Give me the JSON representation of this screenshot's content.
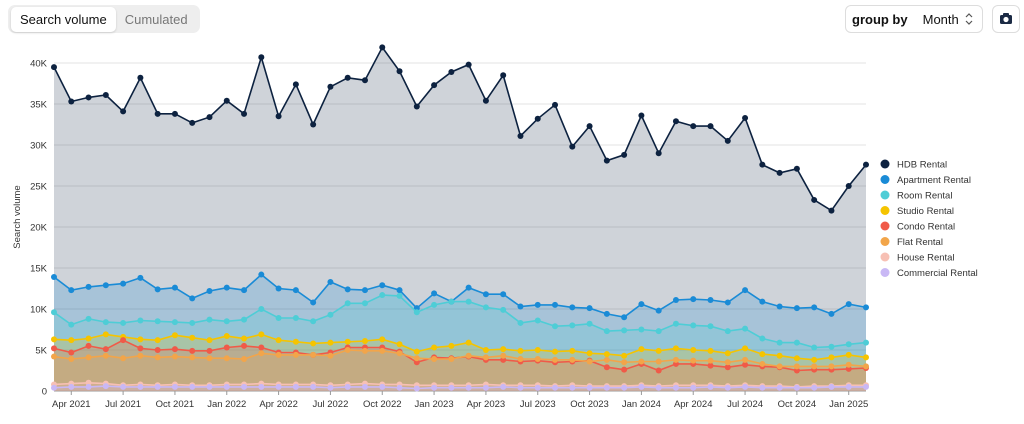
{
  "controls": {
    "tabs": [
      "Search volume",
      "Cumulated"
    ],
    "group_by_label": "group by",
    "group_by_value": "Month"
  },
  "chart_data": {
    "type": "area",
    "y_label": "Search volume",
    "legend": "right",
    "grid": true,
    "x": [
      "2021-03",
      "2021-04",
      "2021-05",
      "2021-06",
      "2021-07",
      "2021-08",
      "2021-09",
      "2021-10",
      "2021-11",
      "2021-12",
      "2022-01",
      "2022-02",
      "2022-03",
      "2022-04",
      "2022-05",
      "2022-06",
      "2022-07",
      "2022-08",
      "2022-09",
      "2022-10",
      "2022-11",
      "2022-12",
      "2023-01",
      "2023-02",
      "2023-03",
      "2023-04",
      "2023-05",
      "2023-06",
      "2023-07",
      "2023-08",
      "2023-09",
      "2023-10",
      "2023-11",
      "2023-12",
      "2024-01",
      "2024-02",
      "2024-03",
      "2024-04",
      "2024-05",
      "2024-06",
      "2024-07",
      "2024-08",
      "2024-09",
      "2024-10",
      "2024-11",
      "2024-12",
      "2025-01",
      "2025-02"
    ],
    "xticks": [
      {
        "value": "2021-04",
        "label": "Apr 2021"
      },
      {
        "value": "2021-07",
        "label": "Jul 2021"
      },
      {
        "value": "2021-10",
        "label": "Oct 2021"
      },
      {
        "value": "2022-01",
        "label": "Jan 2022"
      },
      {
        "value": "2022-04",
        "label": "Apr 2022"
      },
      {
        "value": "2022-07",
        "label": "Jul 2022"
      },
      {
        "value": "2022-10",
        "label": "Oct 2022"
      },
      {
        "value": "2023-01",
        "label": "Jan 2023"
      },
      {
        "value": "2023-04",
        "label": "Apr 2023"
      },
      {
        "value": "2023-07",
        "label": "Jul 2023"
      },
      {
        "value": "2023-10",
        "label": "Oct 2023"
      },
      {
        "value": "2024-01",
        "label": "Jan 2024"
      },
      {
        "value": "2024-04",
        "label": "Apr 2024"
      },
      {
        "value": "2024-07",
        "label": "Jul 2024"
      },
      {
        "value": "2024-10",
        "label": "Oct 2024"
      },
      {
        "value": "2025-01",
        "label": "Jan 2025"
      }
    ],
    "ylim": [
      0,
      42500
    ],
    "yticks": [
      0,
      {
        "value": 5000,
        "label": "5K"
      },
      {
        "value": 10000,
        "label": "10K"
      },
      {
        "value": 15000,
        "label": "15K"
      },
      {
        "value": 20000,
        "label": "20K"
      },
      {
        "value": 25000,
        "label": "25K"
      },
      {
        "value": 30000,
        "label": "30K"
      },
      {
        "value": 35000,
        "label": "35K"
      },
      {
        "value": 40000,
        "label": "40K"
      }
    ],
    "series": [
      {
        "name": "HDB Rental",
        "color": "#0d2240",
        "values": [
          39500,
          35300,
          35800,
          36100,
          34100,
          38200,
          33800,
          33800,
          32700,
          33400,
          35400,
          33800,
          40700,
          33500,
          37400,
          32500,
          37100,
          38200,
          37900,
          41900,
          39000,
          34700,
          37300,
          38900,
          39800,
          35400,
          38500,
          31100,
          33200,
          34900,
          29800,
          32300,
          28100,
          28800,
          33600,
          29000,
          32900,
          32300,
          32300,
          30500,
          33300,
          27600,
          26600,
          27100,
          23300,
          22000,
          25000,
          27600
        ]
      },
      {
        "name": "Apartment Rental",
        "color": "#1a8bd6",
        "values": [
          13900,
          12300,
          12700,
          12900,
          13100,
          13800,
          12400,
          12600,
          11300,
          12200,
          12600,
          12300,
          14200,
          12500,
          12300,
          10800,
          13300,
          12400,
          12300,
          12900,
          12300,
          10100,
          11900,
          10900,
          12600,
          11800,
          11800,
          10300,
          10500,
          10500,
          10200,
          10100,
          9400,
          9000,
          10600,
          9800,
          11100,
          11200,
          11100,
          10800,
          12300,
          10900,
          10300,
          10100,
          10200,
          9400,
          10600,
          10200
        ]
      },
      {
        "name": "Room Rental",
        "color": "#4ecdd6",
        "values": [
          9600,
          8100,
          8800,
          8400,
          8300,
          8600,
          8500,
          8400,
          8300,
          8700,
          8500,
          8700,
          10000,
          8900,
          8900,
          8500,
          9300,
          10700,
          10700,
          11700,
          11600,
          9600,
          10500,
          10900,
          10900,
          10200,
          9900,
          8300,
          8600,
          7900,
          8000,
          8200,
          7300,
          7400,
          7500,
          7300,
          8200,
          8000,
          7900,
          7300,
          7600,
          6400,
          5900,
          5900,
          5300,
          5400,
          5700,
          5900
        ]
      },
      {
        "name": "Studio Rental",
        "color": "#f5c400",
        "values": [
          6300,
          6200,
          6400,
          6900,
          6600,
          6300,
          6200,
          6800,
          6500,
          6200,
          6700,
          6400,
          6900,
          6200,
          6000,
          5800,
          5900,
          6000,
          6100,
          6300,
          5700,
          4800,
          5300,
          5500,
          5900,
          5000,
          5100,
          4900,
          5000,
          4800,
          4900,
          4600,
          4500,
          4300,
          5100,
          4900,
          5200,
          5000,
          4900,
          4600,
          5200,
          4500,
          4300,
          4000,
          3800,
          4100,
          4400,
          4100
        ]
      },
      {
        "name": "Condo Rental",
        "color": "#f05a48",
        "values": [
          5200,
          4700,
          5500,
          5100,
          6200,
          5200,
          5000,
          5100,
          4900,
          4900,
          5300,
          5500,
          5300,
          4700,
          4700,
          4400,
          4700,
          5300,
          5300,
          5300,
          4800,
          3500,
          4100,
          4000,
          4200,
          3800,
          3800,
          3600,
          3700,
          3500,
          3600,
          3700,
          2900,
          2600,
          3300,
          2500,
          3300,
          3300,
          3100,
          2900,
          3200,
          3000,
          2900,
          2500,
          2600,
          2600,
          2700,
          2800
        ]
      },
      {
        "name": "Flat Rental",
        "color": "#f2a54a",
        "values": [
          4200,
          3900,
          4100,
          4300,
          4000,
          4300,
          4100,
          4200,
          4100,
          4000,
          4000,
          3900,
          4600,
          4400,
          4400,
          4400,
          4300,
          5000,
          4900,
          4900,
          4600,
          4000,
          3900,
          3900,
          4300,
          4100,
          4300,
          3900,
          3900,
          3800,
          3800,
          3600,
          3800,
          3500,
          3600,
          3600,
          3800,
          3700,
          3700,
          3500,
          3800,
          3300,
          3000,
          3000,
          3000,
          3000,
          3200,
          3000
        ]
      },
      {
        "name": "House Rental",
        "color": "#f7c0b4",
        "values": [
          800,
          900,
          1000,
          900,
          700,
          800,
          700,
          800,
          700,
          700,
          800,
          800,
          900,
          800,
          800,
          800,
          700,
          800,
          900,
          800,
          800,
          700,
          700,
          700,
          700,
          800,
          700,
          700,
          700,
          600,
          700,
          600,
          600,
          600,
          700,
          600,
          700,
          700,
          700,
          600,
          700,
          600,
          600,
          500,
          600,
          600,
          700,
          700
        ]
      },
      {
        "name": "Commercial Rental",
        "color": "#c9b8f5",
        "values": [
          400,
          500,
          500,
          600,
          500,
          500,
          500,
          500,
          500,
          500,
          500,
          500,
          500,
          500,
          500,
          500,
          400,
          500,
          500,
          500,
          400,
          300,
          400,
          400,
          400,
          400,
          500,
          400,
          400,
          400,
          400,
          400,
          400,
          400,
          500,
          400,
          400,
          400,
          500,
          400,
          500,
          400,
          400,
          400,
          400,
          500,
          500,
          500
        ]
      }
    ]
  }
}
